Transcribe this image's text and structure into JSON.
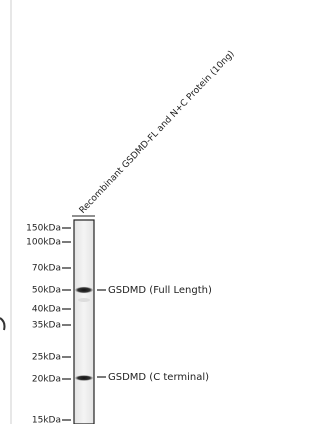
{
  "lane_label": "Recombinant GSDMD-FL and N+C Protein (10ng)",
  "markers": [
    "150kDa",
    "100kDa",
    "70kDa",
    "50kDa",
    "40kDa",
    "35kDa",
    "25kDa",
    "20kDa",
    "15kDa"
  ],
  "bands": [
    "GSDMD (Full Length)",
    "GSDMD (C terminal)"
  ]
}
